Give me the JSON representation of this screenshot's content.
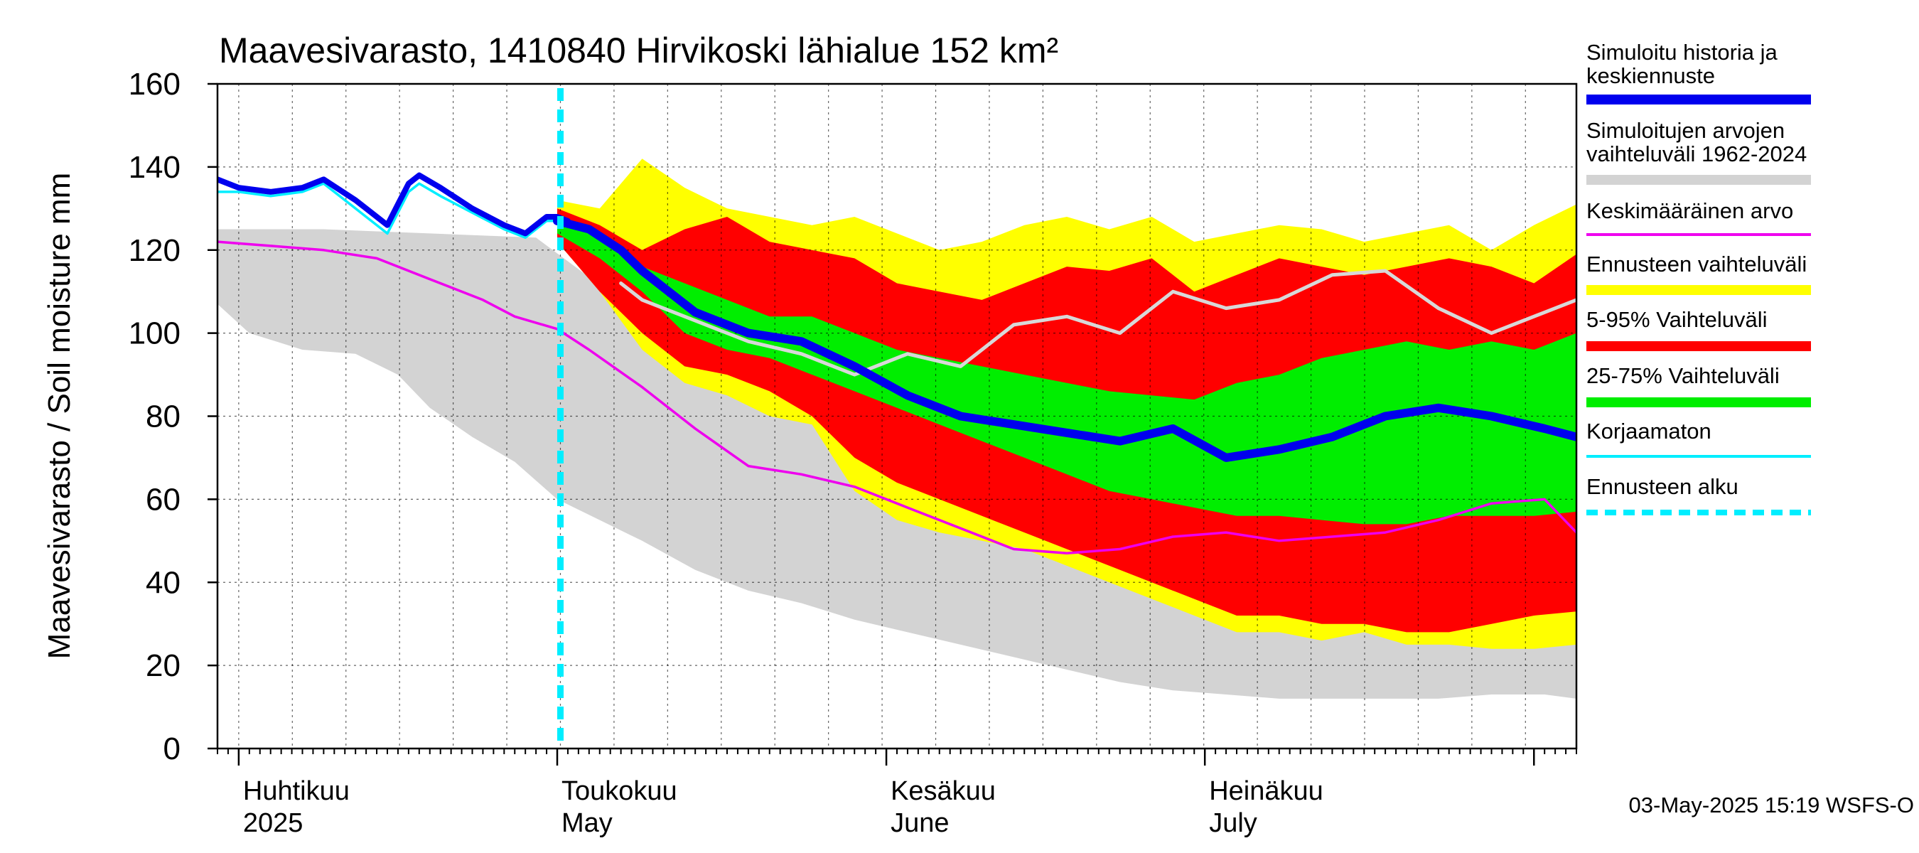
{
  "chart_data": {
    "type": "area",
    "title": "Maavesivarasto, 1410840 Hirvikoski lähialue 152 km²",
    "ylabel": "Maavesivarasto / Soil moisture   mm",
    "ylim": [
      0,
      160
    ],
    "yticks": [
      0,
      20,
      40,
      60,
      80,
      100,
      120,
      140,
      160
    ],
    "xlim_days": [
      0,
      128
    ],
    "x_origin": "2025-03-30",
    "month_labels": [
      {
        "day": 2,
        "fi": "Huhtikuu",
        "en": "2025"
      },
      {
        "day": 32,
        "fi": "Toukokuu",
        "en": "May"
      },
      {
        "day": 63,
        "fi": "Kesäkuu",
        "en": "June"
      },
      {
        "day": 93,
        "fi": "Heinäkuu",
        "en": "July"
      }
    ],
    "month_boundaries": [
      2,
      32,
      63,
      93,
      124
    ],
    "forecast_start_day": 32.3,
    "footer": "03-May-2025 15:19 WSFS-O",
    "colors": {
      "history": "#0000ee",
      "range_hist": "#d3d3d3",
      "mean": "#ee00ee",
      "ens_range": "#ffff00",
      "p5_95": "#ff0000",
      "p25_75": "#00ee00",
      "uncorrected": "#00eeff",
      "forecast_start": "#00eeff",
      "white_line": "#d8d8d8"
    },
    "series": {
      "range_hist_upper": {
        "x": [
          0,
          10,
          20,
          30,
          40,
          50,
          60,
          70,
          80,
          90,
          100,
          110,
          120,
          128
        ],
        "y": [
          125,
          125,
          124,
          123,
          104,
          96,
          88,
          80,
          70,
          60,
          51,
          45,
          36,
          31
        ]
      },
      "range_hist_lower": {
        "x": [
          0,
          3,
          8,
          13,
          17,
          20,
          24,
          28,
          32,
          36,
          40,
          45,
          50,
          55,
          60,
          65,
          70,
          75,
          80,
          85,
          90,
          95,
          100,
          105,
          110,
          115,
          120,
          125,
          128
        ],
        "y": [
          107,
          100,
          96,
          95,
          90,
          82,
          75,
          69,
          60,
          55,
          50,
          43,
          38,
          35,
          31,
          28,
          25,
          22,
          19,
          16,
          14,
          13,
          12,
          12,
          12,
          12,
          13,
          13,
          12
        ]
      },
      "mean": {
        "x": [
          0,
          5,
          10,
          15,
          20,
          25,
          28,
          32,
          35,
          40,
          45,
          50,
          55,
          60,
          65,
          70,
          75,
          80,
          85,
          90,
          95,
          100,
          105,
          110,
          115,
          120,
          125,
          128
        ],
        "y": [
          122,
          121,
          120,
          118,
          113,
          108,
          104,
          101,
          96,
          87,
          77,
          68,
          66,
          63,
          58,
          53,
          48,
          47,
          48,
          51,
          52,
          50,
          51,
          52,
          55,
          59,
          60,
          52
        ]
      },
      "history": {
        "x": [
          0,
          2,
          5,
          8,
          10,
          13,
          16,
          17,
          18,
          19,
          21,
          24,
          27,
          29,
          30,
          31,
          32,
          33
        ],
        "y": [
          137,
          135,
          134,
          135,
          137,
          132,
          126,
          131,
          136,
          138,
          135,
          130,
          126,
          124,
          126,
          128,
          128,
          127
        ]
      },
      "uncorrected": {
        "x": [
          0,
          2,
          5,
          8,
          10,
          13,
          16,
          17,
          18,
          19,
          21,
          24,
          27,
          29,
          30,
          31,
          32,
          33
        ],
        "y": [
          134,
          134,
          133,
          134,
          136,
          130,
          124,
          129,
          134,
          136,
          133,
          129,
          125,
          123,
          125,
          127,
          127,
          126
        ]
      },
      "median_forecast": {
        "x": [
          32,
          35,
          38,
          40,
          45,
          50,
          55,
          60,
          65,
          70,
          75,
          80,
          85,
          90,
          95,
          100,
          105,
          110,
          115,
          120,
          125,
          128
        ],
        "y": [
          127,
          125,
          120,
          115,
          105,
          100,
          98,
          92,
          85,
          80,
          78,
          76,
          74,
          77,
          70,
          72,
          75,
          80,
          82,
          80,
          77,
          75
        ]
      },
      "white_line": {
        "x": [
          38,
          40,
          45,
          50,
          55,
          60,
          65,
          70,
          75,
          80,
          85,
          90,
          95,
          100,
          105,
          110,
          115,
          120,
          125,
          128
        ],
        "y": [
          112,
          108,
          103,
          98,
          95,
          90,
          95,
          92,
          102,
          104,
          100,
          110,
          106,
          108,
          114,
          115,
          106,
          100,
          105,
          108
        ]
      },
      "ens_upper": {
        "x": [
          32,
          36,
          40,
          44,
          48,
          52,
          56,
          60,
          64,
          68,
          72,
          76,
          80,
          84,
          88,
          92,
          96,
          100,
          104,
          108,
          112,
          116,
          120,
          124,
          128
        ],
        "y": [
          132,
          130,
          142,
          135,
          130,
          128,
          126,
          128,
          124,
          120,
          122,
          126,
          128,
          125,
          128,
          122,
          124,
          126,
          125,
          122,
          124,
          126,
          120,
          126,
          131
        ]
      },
      "ens_lower": {
        "x": [
          32,
          36,
          40,
          44,
          48,
          52,
          56,
          60,
          64,
          68,
          72,
          76,
          80,
          84,
          88,
          92,
          96,
          100,
          104,
          108,
          112,
          116,
          120,
          124,
          128
        ],
        "y": [
          122,
          110,
          96,
          88,
          85,
          80,
          78,
          62,
          55,
          52,
          50,
          48,
          44,
          40,
          36,
          32,
          28,
          28,
          26,
          28,
          25,
          25,
          24,
          24,
          25
        ]
      },
      "p5_95_upper": {
        "x": [
          32,
          36,
          40,
          44,
          48,
          52,
          56,
          60,
          64,
          68,
          72,
          76,
          80,
          84,
          88,
          92,
          96,
          100,
          104,
          108,
          112,
          116,
          120,
          124,
          128
        ],
        "y": [
          130,
          126,
          120,
          125,
          128,
          122,
          120,
          118,
          112,
          110,
          108,
          112,
          116,
          115,
          118,
          110,
          114,
          118,
          116,
          114,
          116,
          118,
          116,
          112,
          119
        ]
      },
      "p5_95_lower": {
        "x": [
          32,
          36,
          40,
          44,
          48,
          52,
          56,
          60,
          64,
          68,
          72,
          76,
          80,
          84,
          88,
          92,
          96,
          100,
          104,
          108,
          112,
          116,
          120,
          124,
          128
        ],
        "y": [
          122,
          110,
          100,
          92,
          90,
          86,
          80,
          70,
          64,
          60,
          56,
          52,
          48,
          44,
          40,
          36,
          32,
          32,
          30,
          30,
          28,
          28,
          30,
          32,
          33
        ]
      },
      "p25_75_upper": {
        "x": [
          32,
          36,
          40,
          44,
          48,
          52,
          56,
          60,
          64,
          68,
          72,
          76,
          80,
          84,
          88,
          92,
          96,
          100,
          104,
          108,
          112,
          116,
          120,
          124,
          128
        ],
        "y": [
          128,
          124,
          116,
          112,
          108,
          104,
          104,
          100,
          96,
          94,
          92,
          90,
          88,
          86,
          85,
          84,
          88,
          90,
          94,
          96,
          98,
          96,
          98,
          96,
          100
        ]
      },
      "p25_75_lower": {
        "x": [
          32,
          36,
          40,
          44,
          48,
          52,
          56,
          60,
          64,
          68,
          72,
          76,
          80,
          84,
          88,
          92,
          96,
          100,
          104,
          108,
          112,
          116,
          120,
          124,
          128
        ],
        "y": [
          124,
          118,
          110,
          100,
          96,
          94,
          90,
          86,
          82,
          78,
          74,
          70,
          66,
          62,
          60,
          58,
          56,
          56,
          55,
          54,
          54,
          56,
          56,
          56,
          57
        ]
      }
    },
    "legend": [
      {
        "key": "history",
        "label1": "Simuloitu historia ja",
        "label2": "keskiennuste"
      },
      {
        "key": "range_hist",
        "label1": "Simuloitujen arvojen",
        "label2": "vaihteluväli 1962-2024"
      },
      {
        "key": "mean",
        "label1": "Keskimääräinen arvo",
        "label2": ""
      },
      {
        "key": "ens_range",
        "label1": "Ennusteen vaihteluväli",
        "label2": ""
      },
      {
        "key": "p5_95",
        "label1": "5-95% Vaihteluväli",
        "label2": ""
      },
      {
        "key": "p25_75",
        "label1": "25-75% Vaihteluväli",
        "label2": ""
      },
      {
        "key": "uncorrected",
        "label1": "Korjaamaton",
        "label2": ""
      },
      {
        "key": "forecast_start",
        "label1": "Ennusteen alku",
        "label2": ""
      }
    ]
  }
}
